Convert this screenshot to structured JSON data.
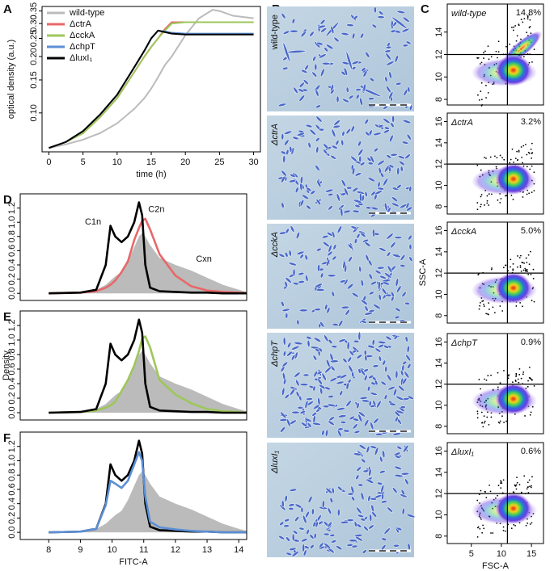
{
  "chart_data": [
    {
      "type": "line",
      "label": "A",
      "x_label": "time (h)",
      "y_label": "optical density (a.u.)",
      "log_y": true,
      "xlim": [
        -1,
        31
      ],
      "ylim": [
        0.062,
        0.37
      ],
      "xticks": [
        0,
        5,
        10,
        15,
        20,
        25,
        30
      ],
      "yticks": [
        {
          "value": 0.1,
          "label": "0.10"
        },
        {
          "value": 0.15,
          "label": "0.15"
        },
        {
          "value": 0.2,
          "label": "0.20"
        },
        {
          "value": 0.25,
          "label": "0.25"
        },
        {
          "value": 0.3,
          "label": "0.30"
        },
        {
          "value": 0.35,
          "label": "0.35"
        }
      ],
      "legend": "top-left",
      "x": [
        0,
        2.5,
        5,
        7.5,
        10,
        12.5,
        14,
        15,
        16,
        17,
        18,
        20,
        22,
        24,
        25,
        27,
        30
      ],
      "series": [
        {
          "name": "wild-type",
          "color": "#bbbbbb",
          "values": [
            0.065,
            0.068,
            0.072,
            0.078,
            0.088,
            0.105,
            0.12,
            0.135,
            0.155,
            0.18,
            0.2,
            0.26,
            0.32,
            0.355,
            0.35,
            0.33,
            0.32
          ]
        },
        {
          "name": "ΔctrA",
          "color": "#e8686a",
          "values": [
            0.065,
            0.07,
            0.078,
            0.095,
            0.12,
            0.165,
            0.2,
            0.225,
            0.25,
            0.28,
            0.305,
            0.305,
            0.305,
            0.305,
            0.305,
            0.305,
            0.305
          ]
        },
        {
          "name": "ΔcckA",
          "color": "#9dc75a",
          "values": [
            0.065,
            0.07,
            0.078,
            0.095,
            0.12,
            0.165,
            0.2,
            0.225,
            0.25,
            0.275,
            0.3,
            0.305,
            0.305,
            0.305,
            0.305,
            0.305,
            0.305
          ]
        },
        {
          "name": "ΔchpT",
          "color": "#5b8fd6",
          "values": [
            0.065,
            0.07,
            0.08,
            0.098,
            0.125,
            0.175,
            0.215,
            0.25,
            0.275,
            0.272,
            0.268,
            0.265,
            0.265,
            0.265,
            0.265,
            0.265,
            0.265
          ]
        },
        {
          "name": "ΔluxI₁",
          "color": "#000000",
          "values": [
            0.065,
            0.07,
            0.08,
            0.098,
            0.125,
            0.175,
            0.215,
            0.25,
            0.275,
            0.27,
            0.265,
            0.262,
            0.262,
            0.262,
            0.262,
            0.262,
            0.262
          ]
        }
      ]
    },
    {
      "type": "flow",
      "label": "C",
      "strain": "wild-type",
      "value": 14.8,
      "value_label": "14.8%",
      "xlim": [
        1,
        17
      ],
      "ylim": [
        7.5,
        16.5
      ],
      "yticks": [
        8,
        10,
        12,
        14
      ],
      "gate": [
        11,
        12
      ]
    },
    {
      "type": "flow",
      "strain": "ΔctrA",
      "value": 3.2,
      "value_label": "3.2%",
      "xlim": [
        1,
        17
      ],
      "ylim": [
        7.3,
        16.8
      ],
      "yticks": [
        8,
        10,
        12,
        14,
        16
      ],
      "gate": [
        11,
        12
      ]
    },
    {
      "type": "flow",
      "strain": "ΔcckA",
      "value": 5.0,
      "value_label": "5.0%",
      "y_label": "SSC-A",
      "xlim": [
        1,
        17
      ],
      "ylim": [
        7.3,
        16.8
      ],
      "yticks": [
        8,
        10,
        12,
        14,
        16
      ],
      "gate": [
        11,
        12
      ]
    },
    {
      "type": "flow",
      "strain": "ΔchpT",
      "value": 0.9,
      "value_label": "0.9%",
      "xlim": [
        1,
        17
      ],
      "ylim": [
        7.3,
        16.8
      ],
      "yticks": [
        8,
        10,
        12,
        14,
        16
      ],
      "gate": [
        11,
        12
      ]
    },
    {
      "type": "flow",
      "strain": "ΔluxI₁",
      "value": 0.6,
      "value_label": "0.6%",
      "x_label": "FSC-A",
      "xlim": [
        1,
        17
      ],
      "ylim": [
        7.3,
        16.8
      ],
      "xticks": [
        5,
        10,
        15
      ],
      "yticks": [
        8,
        10,
        12,
        14,
        16
      ],
      "gate": [
        11,
        12
      ]
    },
    {
      "type": "density",
      "label": "D",
      "annotations": [
        "C1n",
        "C2n",
        "Cxn"
      ],
      "xlim": [
        7.1,
        14.25
      ],
      "ylim": [
        -0.1,
        1.4
      ],
      "yticks": [
        {
          "value": 0,
          "label": "0.0"
        },
        {
          "value": 0.2,
          "label": "0.2"
        },
        {
          "value": 0.4,
          "label": "0.4"
        },
        {
          "value": 0.6,
          "label": "0.6"
        },
        {
          "value": 0.8,
          "label": "0.8"
        },
        {
          "value": 1,
          "label": "1.0"
        },
        {
          "value": 1.2,
          "label": "1.2"
        }
      ],
      "x": [
        8,
        9,
        9.5,
        9.8,
        9.95,
        10.1,
        10.3,
        10.5,
        10.7,
        10.85,
        10.95,
        11.05,
        11.2,
        11.5,
        12,
        12.5,
        13,
        13.5,
        14,
        14.25
      ],
      "series": [
        {
          "color": "#bbbbbb",
          "fill": true,
          "values": [
            0,
            0.01,
            0.05,
            0.12,
            0.18,
            0.24,
            0.3,
            0.45,
            0.65,
            0.8,
            0.85,
            0.8,
            0.68,
            0.5,
            0.4,
            0.32,
            0.22,
            0.12,
            0.05,
            0.02
          ]
        },
        {
          "color": "#e8686a",
          "values": [
            0,
            0.01,
            0.03,
            0.08,
            0.12,
            0.18,
            0.3,
            0.45,
            0.75,
            0.92,
            1.02,
            1.05,
            0.9,
            0.55,
            0.25,
            0.1,
            0.04,
            0.02,
            0.01,
            0
          ]
        },
        {
          "color": "#000000",
          "values": [
            0,
            0.01,
            0.05,
            0.4,
            0.95,
            0.8,
            0.72,
            0.8,
            1.0,
            1.28,
            1.1,
            0.4,
            0.08,
            0.03,
            0.02,
            0.01,
            0.01,
            0,
            0,
            0
          ]
        }
      ]
    },
    {
      "type": "density",
      "label": "E",
      "y_label": "Density",
      "xlim": [
        7.1,
        14.25
      ],
      "ylim": [
        -0.1,
        1.4
      ],
      "yticks": [
        {
          "value": 0,
          "label": "0.0"
        },
        {
          "value": 0.2,
          "label": "0.2"
        },
        {
          "value": 0.4,
          "label": "0.4"
        },
        {
          "value": 0.6,
          "label": "0.6"
        },
        {
          "value": 0.8,
          "label": "0.8"
        },
        {
          "value": 1,
          "label": "1.0"
        },
        {
          "value": 1.2,
          "label": "1.2"
        }
      ],
      "x": [
        8,
        9,
        9.5,
        9.8,
        9.95,
        10.1,
        10.3,
        10.5,
        10.7,
        10.85,
        10.95,
        11.05,
        11.2,
        11.5,
        12,
        12.5,
        13,
        13.5,
        14,
        14.25
      ],
      "series": [
        {
          "color": "#bbbbbb",
          "fill": true,
          "values": [
            0,
            0.01,
            0.05,
            0.12,
            0.18,
            0.24,
            0.3,
            0.45,
            0.65,
            0.8,
            0.85,
            0.8,
            0.68,
            0.5,
            0.4,
            0.32,
            0.22,
            0.12,
            0.05,
            0.02
          ]
        },
        {
          "color": "#9dc75a",
          "values": [
            0,
            0.01,
            0.03,
            0.07,
            0.1,
            0.15,
            0.3,
            0.45,
            0.65,
            0.85,
            1.02,
            1.05,
            0.9,
            0.45,
            0.25,
            0.13,
            0.05,
            0.02,
            0.01,
            0
          ]
        },
        {
          "color": "#000000",
          "values": [
            0,
            0.01,
            0.05,
            0.4,
            0.95,
            0.8,
            0.72,
            0.8,
            1.0,
            1.28,
            1.1,
            0.4,
            0.08,
            0.03,
            0.02,
            0.01,
            0.01,
            0,
            0,
            0
          ]
        }
      ]
    },
    {
      "type": "density",
      "label": "F",
      "x_label": "FITC-A",
      "xlim": [
        7.1,
        14.25
      ],
      "ylim": [
        -0.1,
        1.4
      ],
      "xticks": [
        8,
        9,
        10,
        11,
        12,
        13,
        14
      ],
      "yticks": [
        {
          "value": 0,
          "label": "0.0"
        },
        {
          "value": 0.2,
          "label": "0.2"
        },
        {
          "value": 0.4,
          "label": "0.4"
        },
        {
          "value": 0.6,
          "label": "0.6"
        },
        {
          "value": 0.8,
          "label": "0.8"
        },
        {
          "value": 1,
          "label": "1.0"
        },
        {
          "value": 1.2,
          "label": "1.2"
        }
      ],
      "x": [
        8,
        9,
        9.5,
        9.8,
        9.95,
        10.1,
        10.3,
        10.5,
        10.7,
        10.85,
        10.95,
        11.05,
        11.2,
        11.5,
        12,
        12.5,
        13,
        13.5,
        14,
        14.25
      ],
      "series": [
        {
          "color": "#bbbbbb",
          "fill": true,
          "values": [
            0,
            0.01,
            0.05,
            0.12,
            0.18,
            0.24,
            0.3,
            0.45,
            0.65,
            0.8,
            0.85,
            0.8,
            0.68,
            0.5,
            0.4,
            0.32,
            0.22,
            0.12,
            0.05,
            0.02
          ]
        },
        {
          "color": "#000000",
          "values": [
            0,
            0.01,
            0.05,
            0.4,
            0.95,
            0.8,
            0.72,
            0.8,
            1.0,
            1.28,
            1.1,
            0.4,
            0.08,
            0.03,
            0.02,
            0.01,
            0.01,
            0,
            0,
            0
          ]
        },
        {
          "color": "#5b8fd6",
          "values": [
            0,
            0.01,
            0.05,
            0.38,
            0.72,
            0.68,
            0.62,
            0.72,
            0.95,
            1.12,
            1.0,
            0.5,
            0.15,
            0.07,
            0.04,
            0.02,
            0.01,
            0,
            0,
            0
          ]
        }
      ]
    }
  ],
  "micrographs": {
    "label": "B",
    "strains": [
      "wild-type",
      "ΔctrA",
      "ΔcckA",
      "ΔchpT",
      "ΔluxI₁"
    ]
  }
}
